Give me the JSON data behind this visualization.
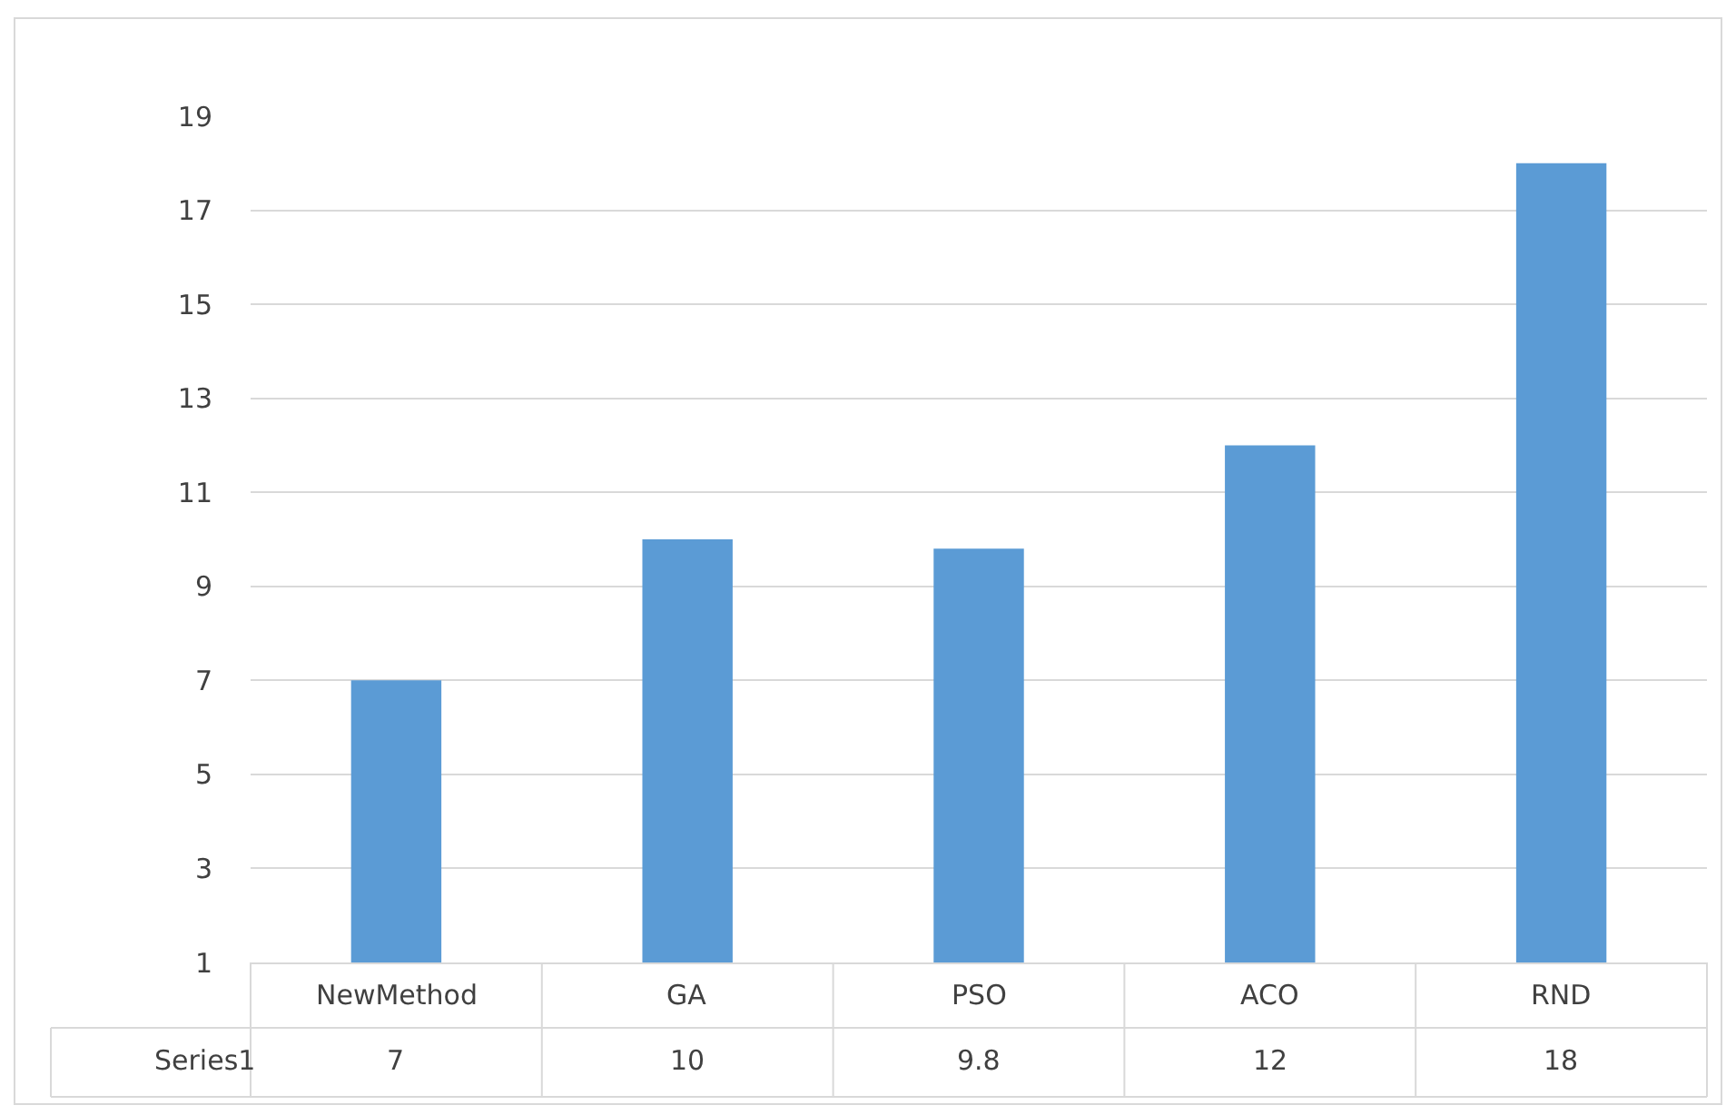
{
  "chart_data": {
    "type": "bar",
    "categories": [
      "NewMethod",
      "GA",
      "PSO",
      "ACO",
      "RND"
    ],
    "series": [
      {
        "name": "Series1",
        "color": "#5b9bd5",
        "values": [
          7,
          10,
          9.8,
          12,
          18
        ]
      }
    ],
    "ylim": [
      1,
      19
    ],
    "yticks": [
      1,
      3,
      5,
      7,
      9,
      11,
      13,
      15,
      17,
      19
    ],
    "grid": "y",
    "legend": false,
    "data_labels": true
  }
}
